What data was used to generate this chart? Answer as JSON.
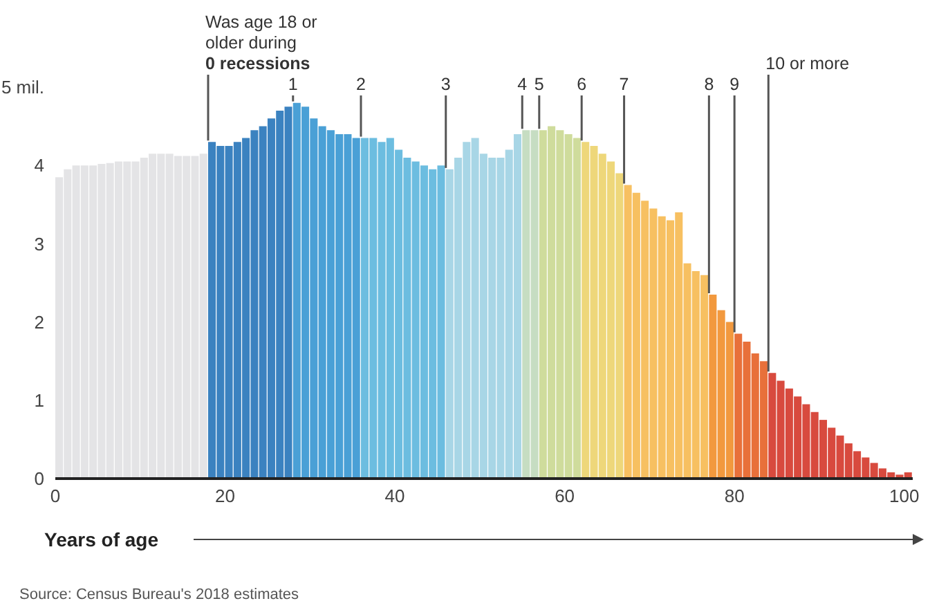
{
  "chart_data": {
    "type": "histogram",
    "xlabel": "Years of age",
    "bins": [
      0,
      1,
      2,
      3,
      4,
      5,
      6,
      7,
      8,
      9,
      10,
      11,
      12,
      13,
      14,
      15,
      16,
      17,
      18,
      19,
      20,
      21,
      22,
      23,
      24,
      25,
      26,
      27,
      28,
      29,
      30,
      31,
      32,
      33,
      34,
      35,
      36,
      37,
      38,
      39,
      40,
      41,
      42,
      43,
      44,
      45,
      46,
      47,
      48,
      49,
      50,
      51,
      52,
      53,
      54,
      55,
      56,
      57,
      58,
      59,
      60,
      61,
      62,
      63,
      64,
      65,
      66,
      67,
      68,
      69,
      70,
      71,
      72,
      73,
      74,
      75,
      76,
      77,
      78,
      79,
      80,
      81,
      82,
      83,
      84,
      85,
      86,
      87,
      88,
      89,
      90,
      91,
      92,
      93,
      94,
      95,
      96,
      97,
      98,
      99,
      100,
      101
    ],
    "values": [
      3.85,
      3.95,
      4.0,
      4.0,
      4.0,
      4.02,
      4.03,
      4.05,
      4.05,
      4.05,
      4.1,
      4.15,
      4.15,
      4.15,
      4.12,
      4.12,
      4.12,
      4.15,
      4.3,
      4.25,
      4.25,
      4.3,
      4.35,
      4.45,
      4.5,
      4.6,
      4.7,
      4.75,
      4.8,
      4.75,
      4.6,
      4.5,
      4.45,
      4.4,
      4.4,
      4.35,
      4.35,
      4.35,
      4.3,
      4.35,
      4.2,
      4.1,
      4.05,
      4.0,
      3.95,
      4.0,
      3.95,
      4.1,
      4.3,
      4.35,
      4.15,
      4.1,
      4.1,
      4.2,
      4.4,
      4.45,
      4.45,
      4.45,
      4.5,
      4.45,
      4.4,
      4.35,
      4.3,
      4.25,
      4.15,
      4.05,
      3.9,
      3.75,
      3.65,
      3.55,
      3.45,
      3.35,
      3.3,
      3.4,
      2.75,
      2.65,
      2.6,
      2.35,
      2.15,
      2.0,
      1.85,
      1.75,
      1.6,
      1.5,
      1.35,
      1.25,
      1.15,
      1.05,
      0.95,
      0.85,
      0.75,
      0.65,
      0.55,
      0.45,
      0.35,
      0.27,
      0.2,
      0.13,
      0.08,
      0.05,
      0.08
    ],
    "colors": [
      "#e4e4e6",
      "#e4e4e6",
      "#e4e4e6",
      "#e4e4e6",
      "#e4e4e6",
      "#e4e4e6",
      "#e4e4e6",
      "#e4e4e6",
      "#e4e4e6",
      "#e4e4e6",
      "#e4e4e6",
      "#e4e4e6",
      "#e4e4e6",
      "#e4e4e6",
      "#e4e4e6",
      "#e4e4e6",
      "#e4e4e6",
      "#e4e4e6",
      "#3b82c0",
      "#3b82c0",
      "#3b82c0",
      "#3b82c0",
      "#3b82c0",
      "#3b82c0",
      "#3b82c0",
      "#3b82c0",
      "#3b82c0",
      "#3b82c0",
      "#4aa0d6",
      "#4aa0d6",
      "#4aa0d6",
      "#4aa0d6",
      "#4aa0d6",
      "#4aa0d6",
      "#4aa0d6",
      "#4aa0d6",
      "#6cbde0",
      "#6cbde0",
      "#6cbde0",
      "#6cbde0",
      "#6cbde0",
      "#6cbde0",
      "#6cbde0",
      "#6cbde0",
      "#6cbde0",
      "#6cbde0",
      "#a8d6e6",
      "#a8d6e6",
      "#a8d6e6",
      "#a8d6e6",
      "#a8d6e6",
      "#a8d6e6",
      "#a8d6e6",
      "#a8d6e6",
      "#a8d6e6",
      "#c6ddc2",
      "#c6ddc2",
      "#cfdc9c",
      "#cfdc9c",
      "#cfdc9c",
      "#cfdc9c",
      "#cfdc9c",
      "#eed77a",
      "#eed77a",
      "#eed77a",
      "#eed77a",
      "#eed77a",
      "#f7c061",
      "#f7c061",
      "#f7c061",
      "#f7c061",
      "#f7c061",
      "#f7c061",
      "#f7c061",
      "#f7c061",
      "#f7c061",
      "#f7c061",
      "#f2993e",
      "#f2993e",
      "#f2993e",
      "#e8703a",
      "#e8703a",
      "#e8703a",
      "#e8703a",
      "#d84a3e",
      "#d84a3e",
      "#d84a3e",
      "#d84a3e",
      "#d84a3e",
      "#d84a3e",
      "#d84a3e",
      "#d84a3e",
      "#d84a3e",
      "#d84a3e",
      "#d84a3e",
      "#d84a3e",
      "#d84a3e",
      "#d84a3e",
      "#d84a3e",
      "#d84a3e",
      "#d84a3e"
    ],
    "xlim": [
      0,
      101
    ],
    "xticks": [
      0,
      20,
      40,
      60,
      80,
      100
    ],
    "ylim": [
      0,
      5
    ],
    "yticks": [
      0,
      1,
      2,
      3,
      4,
      {
        "value": 5,
        "label": "5 mil."
      }
    ],
    "annotations": [
      {
        "text": "Was age 18 or older during 0 recessions",
        "x": 18,
        "y": 4.3
      },
      {
        "text": "1",
        "x": 28,
        "y": 4.8
      },
      {
        "text": "2",
        "x": 36,
        "y": 4.35
      },
      {
        "text": "3",
        "x": 46,
        "y": 3.95
      },
      {
        "text": "4",
        "x": 55,
        "y": 4.45
      },
      {
        "text": "5",
        "x": 57,
        "y": 4.45
      },
      {
        "text": "6",
        "x": 62,
        "y": 4.3
      },
      {
        "text": "7",
        "x": 67,
        "y": 3.75
      },
      {
        "text": "8",
        "x": 77,
        "y": 2.35
      },
      {
        "text": "9",
        "x": 80,
        "y": 1.85
      },
      {
        "text": "10 or more",
        "x": 84,
        "y": 1.35
      },
      "Source: Census Bureau's 2018 estimates"
    ]
  }
}
